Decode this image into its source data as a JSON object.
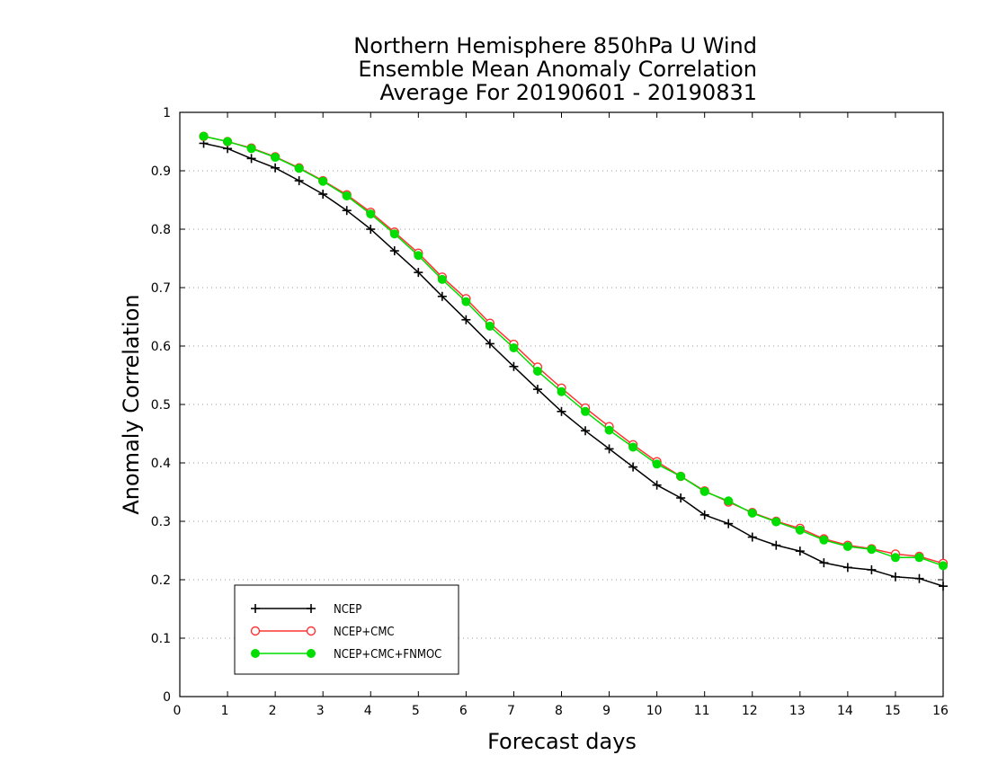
{
  "chart_data": {
    "type": "line",
    "title_lines": [
      "Northern Hemisphere 850hPa U Wind",
      "Ensemble Mean Anomaly Correlation",
      "Average For 20190601 - 20190831"
    ],
    "xlabel": "Forecast days",
    "ylabel": "Anomaly Correlation",
    "xlim": [
      0,
      16
    ],
    "ylim": [
      0,
      1
    ],
    "x_ticks": [
      "0",
      "1",
      "2",
      "3",
      "4",
      "5",
      "6",
      "7",
      "8",
      "9",
      "10",
      "11",
      "12",
      "13",
      "14",
      "15",
      "16"
    ],
    "y_ticks": [
      "0",
      "0.1",
      "0.2",
      "0.3",
      "0.4",
      "0.5",
      "0.6",
      "0.7",
      "0.8",
      "0.9",
      "1"
    ],
    "grid": "horizontal-dotted",
    "legend_position": "bottom-left",
    "x": [
      0.5,
      1,
      1.5,
      2,
      2.5,
      3,
      3.5,
      4,
      4.5,
      5,
      5.5,
      6,
      6.5,
      7,
      7.5,
      8,
      8.5,
      9,
      9.5,
      10,
      10.5,
      11,
      11.5,
      12,
      12.5,
      13,
      13.5,
      14,
      14.5,
      15,
      15.5,
      16
    ],
    "series": [
      {
        "name": "NCEP",
        "color": "#000000",
        "marker": "plus",
        "values": [
          0.947,
          0.938,
          0.921,
          0.905,
          0.883,
          0.86,
          0.832,
          0.8,
          0.763,
          0.726,
          0.685,
          0.645,
          0.604,
          0.565,
          0.526,
          0.488,
          0.455,
          0.424,
          0.393,
          0.362,
          0.34,
          0.311,
          0.296,
          0.273,
          0.259,
          0.249,
          0.229,
          0.221,
          0.217,
          0.205,
          0.202,
          0.189
        ]
      },
      {
        "name": "NCEP+CMC",
        "color": "#ff3333",
        "marker": "open-circle",
        "values": [
          0.959,
          0.95,
          0.939,
          0.924,
          0.905,
          0.883,
          0.859,
          0.829,
          0.795,
          0.759,
          0.718,
          0.681,
          0.639,
          0.603,
          0.564,
          0.528,
          0.494,
          0.462,
          0.431,
          0.402,
          0.377,
          0.352,
          0.333,
          0.315,
          0.3,
          0.288,
          0.27,
          0.259,
          0.253,
          0.244,
          0.24,
          0.228
        ]
      },
      {
        "name": "NCEP+CMC+FNMOC",
        "color": "#00dd00",
        "marker": "filled-circle",
        "values": [
          0.959,
          0.95,
          0.938,
          0.923,
          0.904,
          0.882,
          0.857,
          0.826,
          0.792,
          0.755,
          0.714,
          0.676,
          0.634,
          0.597,
          0.557,
          0.522,
          0.488,
          0.456,
          0.427,
          0.398,
          0.377,
          0.351,
          0.335,
          0.314,
          0.299,
          0.285,
          0.268,
          0.257,
          0.252,
          0.238,
          0.238,
          0.224
        ]
      }
    ]
  }
}
